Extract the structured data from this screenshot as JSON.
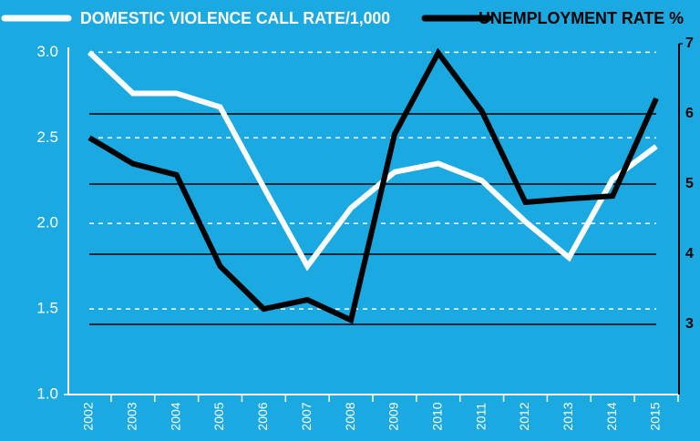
{
  "chart_data": {
    "type": "line",
    "categories": [
      "2002",
      "2003",
      "2004",
      "2005",
      "2006",
      "2007",
      "2008",
      "2009",
      "2010",
      "2011",
      "2012",
      "2013",
      "2014",
      "2015"
    ],
    "series": [
      {
        "name": "DOMESTIC VIOLENCE CALL RATE/1,000",
        "color": "#ffffff",
        "axis": "y",
        "values": [
          3.0,
          2.76,
          2.76,
          2.68,
          2.21,
          1.75,
          2.09,
          2.3,
          2.35,
          2.25,
          2.01,
          1.8,
          2.26,
          2.45
        ]
      },
      {
        "name": "UNEMPLOYMENT RATE %",
        "color": "#000000",
        "axis": "y2",
        "values": [
          5.66,
          5.29,
          5.13,
          3.83,
          3.22,
          3.35,
          3.06,
          5.71,
          6.87,
          6.04,
          4.74,
          4.79,
          4.83,
          6.22
        ]
      }
    ],
    "ylim": [
      1.0,
      3.05
    ],
    "yticks": [
      {
        "value": 1.0,
        "label": "1.0"
      },
      1.5,
      {
        "value": 2.0,
        "label": "2.0"
      },
      2.5,
      {
        "value": 3.0,
        "label": "3.0"
      }
    ],
    "y2lim": [
      2,
      7
    ],
    "y2ticks": [
      3,
      4,
      5,
      6,
      7
    ],
    "grid": true,
    "legend": "top"
  }
}
